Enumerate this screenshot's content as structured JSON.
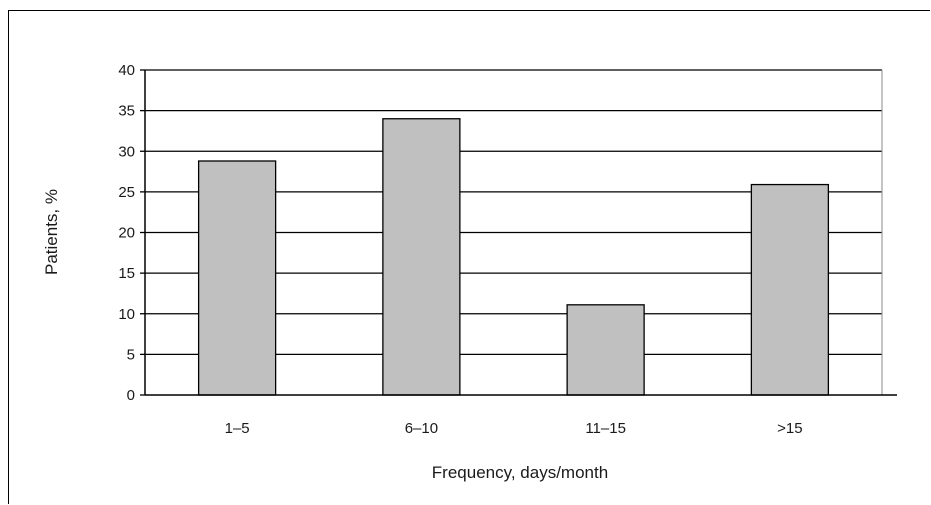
{
  "chart_data": {
    "type": "bar",
    "categories": [
      "1–5",
      "6–10",
      "11–15",
      ">15"
    ],
    "values": [
      28.8,
      34,
      11.1,
      25.9
    ],
    "xlabel": "Frequency, days/month",
    "ylabel": "Patients, %",
    "ylim": [
      0,
      40
    ],
    "yticks": [
      "0",
      "5",
      "10",
      "15",
      "20",
      "25",
      "30",
      "35",
      "40"
    ],
    "grid": true,
    "legend": "none",
    "colors": {
      "bar_fill": "#c0c0c0",
      "bar_stroke": "#000000",
      "grid": "#000000",
      "axis": "#000000"
    }
  }
}
